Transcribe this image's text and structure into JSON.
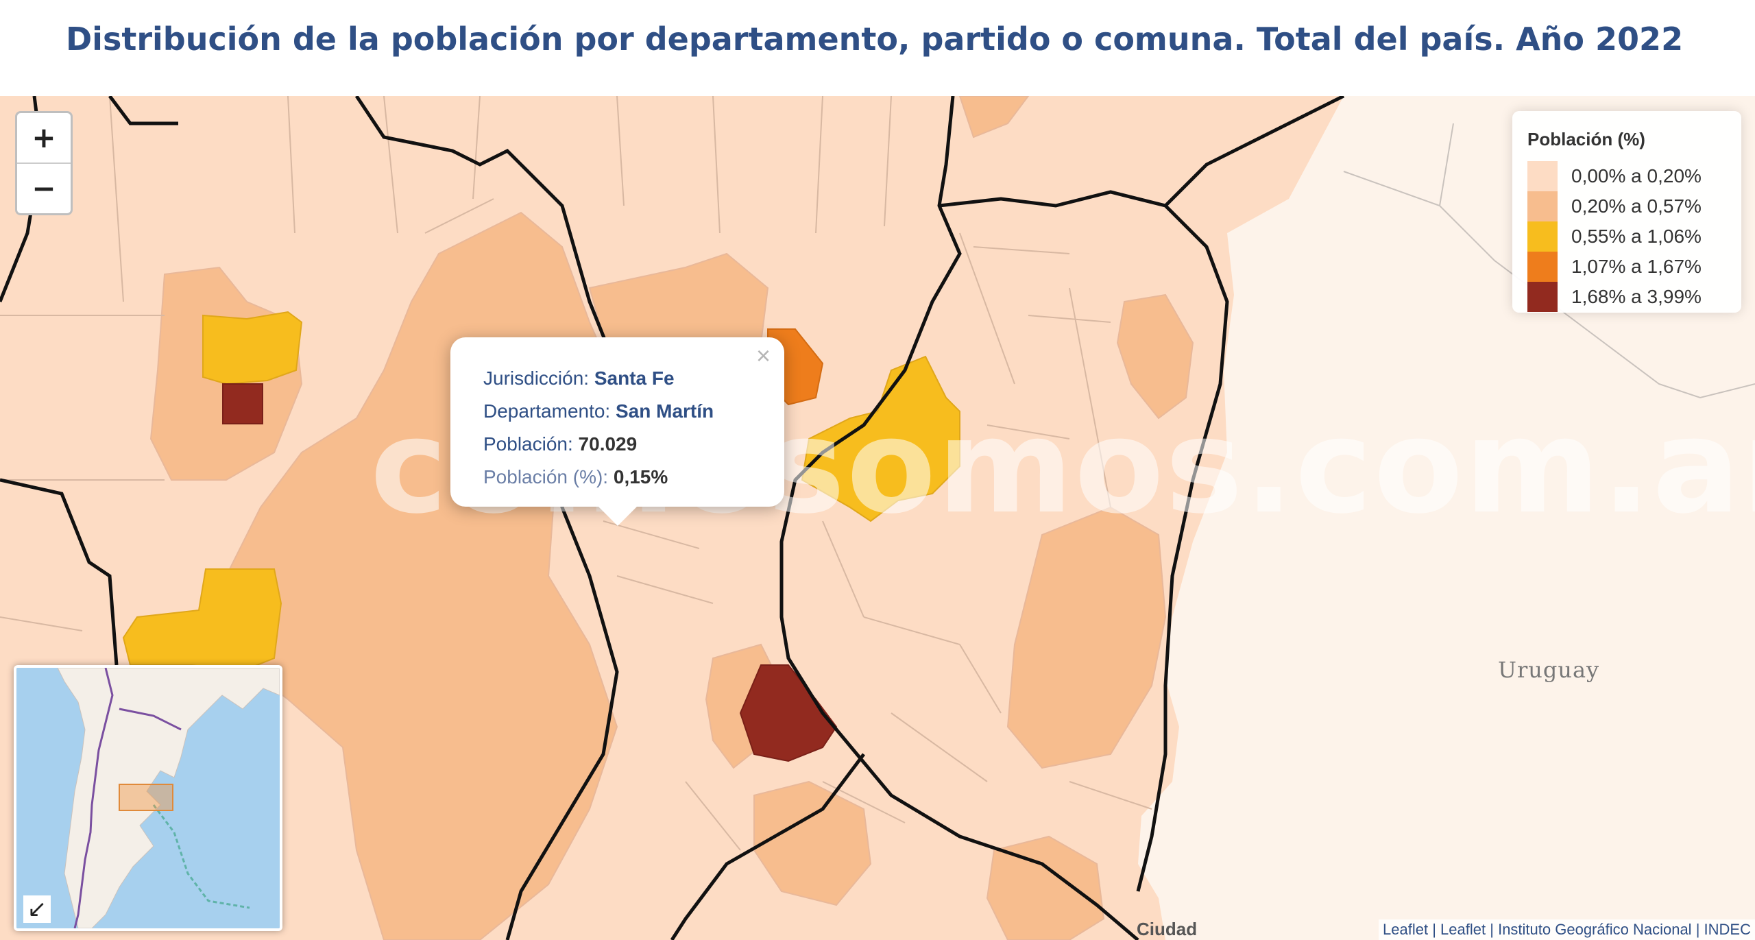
{
  "title": "Distribución de la población por departamento, partido o comuna. Total del país. Año 2022",
  "zoom": {
    "in_label": "+",
    "out_label": "−"
  },
  "legend": {
    "title": "Población (%)",
    "items": [
      {
        "label": "0,00% a 0,20%",
        "color": "#fddcc4"
      },
      {
        "label": "0,20% a 0,57%",
        "color": "#f7bd8e"
      },
      {
        "label": "0,55% a 1,06%",
        "color": "#f7bd1e"
      },
      {
        "label": "1,07% a 1,67%",
        "color": "#ee7d1c"
      },
      {
        "label": "1,68% a 3,99%",
        "color": "#922a1f"
      }
    ]
  },
  "popup": {
    "close_label": "×",
    "jurisdiccion_label": "Jurisdicción:",
    "jurisdiccion_value": "Santa Fe",
    "departamento_label": "Departamento:",
    "departamento_value": "San Martín",
    "poblacion_label": "Población:",
    "poblacion_value": "70.029",
    "poblacion_pct_label": "Población (%):",
    "poblacion_pct_value": "0,15%"
  },
  "map_labels": {
    "country": "Uruguay",
    "city": "Ciudad"
  },
  "watermark": "comosomos.com.ar",
  "minimap": {
    "toggle_label": "↙"
  },
  "attribution": {
    "leaflet1": "Leaflet",
    "sep": "|",
    "leaflet2": "Leaflet",
    "ign": "Instituto Geográfico Nacional",
    "indec": "INDEC"
  }
}
